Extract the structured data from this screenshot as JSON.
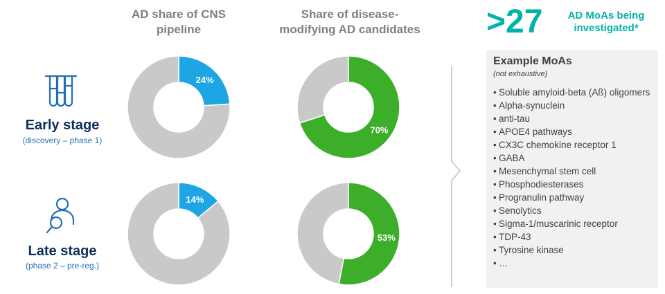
{
  "columns": {
    "ad_share": "AD share of CNS pipeline",
    "dm_share": "Share of disease-modifying AD candidates"
  },
  "stages": [
    {
      "title": "Early stage",
      "subtitle": "(discovery – phase 1)",
      "icon": "test-tubes-icon"
    },
    {
      "title": "Late stage",
      "subtitle": "(phase 2 – pre-reg.)",
      "icon": "person-magnifier-icon"
    }
  ],
  "chart_data": [
    {
      "type": "pie",
      "title": "AD share of CNS pipeline",
      "category": "Early stage",
      "values": [
        24,
        76
      ],
      "labels": [
        "24%",
        ""
      ],
      "colors": [
        "#1ea5e3",
        "#c9c9c9"
      ]
    },
    {
      "type": "pie",
      "title": "Share of disease-modifying AD candidates",
      "category": "Early stage",
      "values": [
        70,
        30
      ],
      "labels": [
        "70%",
        ""
      ],
      "colors": [
        "#3cae2a",
        "#c9c9c9"
      ]
    },
    {
      "type": "pie",
      "title": "AD share of CNS pipeline",
      "category": "Late stage",
      "values": [
        14,
        86
      ],
      "labels": [
        "14%",
        ""
      ],
      "colors": [
        "#1ea5e3",
        "#c9c9c9"
      ]
    },
    {
      "type": "pie",
      "title": "Share of disease-modifying AD candidates",
      "category": "Late stage",
      "values": [
        53,
        47
      ],
      "labels": [
        "53%",
        ""
      ],
      "colors": [
        "#3cae2a",
        "#c9c9c9"
      ]
    }
  ],
  "highlight": {
    "number": ">27",
    "caption": "AD MoAs being investigated*"
  },
  "moa": {
    "title": "Example MoAs",
    "note": "(not exhaustive)",
    "bullet": "•",
    "items": [
      "Soluble amyloid-beta (Aß) oligomers",
      "Alpha-synuclein",
      "anti-tau",
      "APOE4 pathways",
      "CX3C chemokine receptor 1",
      "GABA",
      "Mesenchymal stem cell",
      "Phosphodiesterases",
      "Progranulin pathway",
      "Senolytics",
      "Sigma-1/muscarinic receptor",
      "TDP-43",
      "Tyrosine kinase",
      "…"
    ]
  }
}
